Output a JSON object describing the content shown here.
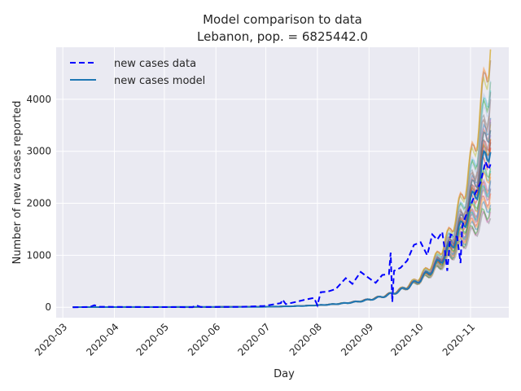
{
  "chart_data": {
    "type": "line",
    "title_line1": "Model comparison to data",
    "title_line2": "Lebanon, pop. = 6825442.0",
    "xlabel": "Day",
    "ylabel": "Number of new cases reported",
    "x_start": "2020-03-07",
    "x_end": "2020-11-13",
    "xlim": [
      "2020-02-26",
      "2020-11-24"
    ],
    "ylim": [
      -200,
      5000
    ],
    "x_ticks": [
      "2020-03",
      "2020-04",
      "2020-05",
      "2020-06",
      "2020-07",
      "2020-08",
      "2020-09",
      "2020-10",
      "2020-11"
    ],
    "x_tick_dates": [
      "2020-03-01",
      "2020-04-01",
      "2020-05-01",
      "2020-06-01",
      "2020-07-01",
      "2020-08-01",
      "2020-09-01",
      "2020-10-01",
      "2020-11-01"
    ],
    "y_ticks": [
      0,
      1000,
      2000,
      3000,
      4000
    ],
    "grid": true,
    "legend_position": "top-left",
    "background": "#eaeaf2",
    "series": [
      {
        "name": "new cases data",
        "style": "dashed",
        "color": "#0000ff",
        "points": [
          [
            "2020-03-07",
            0
          ],
          [
            "2020-03-17",
            5
          ],
          [
            "2020-03-20",
            40
          ],
          [
            "2020-03-23",
            10
          ],
          [
            "2020-04-10",
            5
          ],
          [
            "2020-05-01",
            3
          ],
          [
            "2020-05-18",
            2
          ],
          [
            "2020-05-20",
            40
          ],
          [
            "2020-05-23",
            5
          ],
          [
            "2020-06-15",
            8
          ],
          [
            "2020-06-30",
            25
          ],
          [
            "2020-07-10",
            80
          ],
          [
            "2020-07-11",
            150
          ],
          [
            "2020-07-13",
            60
          ],
          [
            "2020-07-20",
            110
          ],
          [
            "2020-07-25",
            150
          ],
          [
            "2020-07-30",
            180
          ],
          [
            "2020-08-01",
            40
          ],
          [
            "2020-08-03",
            290
          ],
          [
            "2020-08-07",
            300
          ],
          [
            "2020-08-12",
            350
          ],
          [
            "2020-08-18",
            560
          ],
          [
            "2020-08-22",
            450
          ],
          [
            "2020-08-27",
            680
          ],
          [
            "2020-09-01",
            560
          ],
          [
            "2020-09-05",
            470
          ],
          [
            "2020-09-09",
            620
          ],
          [
            "2020-09-13",
            640
          ],
          [
            "2020-09-14",
            1050
          ],
          [
            "2020-09-15",
            100
          ],
          [
            "2020-09-16",
            700
          ],
          [
            "2020-09-20",
            760
          ],
          [
            "2020-09-24",
            900
          ],
          [
            "2020-09-28",
            1200
          ],
          [
            "2020-10-02",
            1250
          ],
          [
            "2020-10-06",
            1000
          ],
          [
            "2020-10-09",
            1400
          ],
          [
            "2020-10-12",
            1300
          ],
          [
            "2020-10-15",
            1450
          ],
          [
            "2020-10-17",
            1000
          ],
          [
            "2020-10-18",
            700
          ],
          [
            "2020-10-20",
            1400
          ],
          [
            "2020-10-24",
            1350
          ],
          [
            "2020-10-26",
            850
          ],
          [
            "2020-10-27",
            1550
          ],
          [
            "2020-10-29",
            1750
          ],
          [
            "2020-11-01",
            1950
          ],
          [
            "2020-11-04",
            2200
          ],
          [
            "2020-11-07",
            2400
          ],
          [
            "2020-11-10",
            2800
          ],
          [
            "2020-11-12",
            2650
          ],
          [
            "2020-11-13",
            2750
          ]
        ]
      },
      {
        "name": "new cases model",
        "style": "solid",
        "color": "#1f77b4"
      }
    ],
    "ensemble_end_spread": [
      1250,
      4750
    ],
    "ensemble_colors": [
      "#1f77b4",
      "#ff7f0e",
      "#2ca02c",
      "#d62728",
      "#9467bd",
      "#8c564b",
      "#e377c2",
      "#7f7f7f",
      "#bcbd22",
      "#17becf",
      "#aec7e8",
      "#ffbb78"
    ]
  }
}
